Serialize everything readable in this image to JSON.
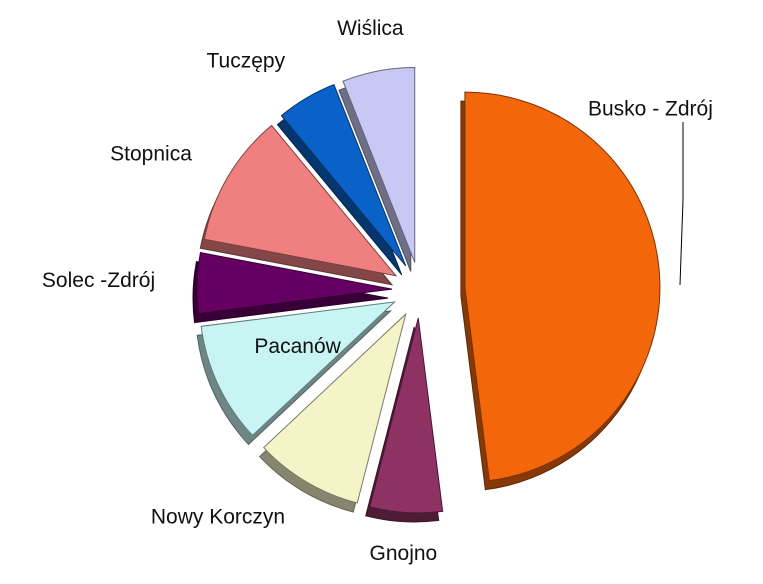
{
  "chart_data": {
    "type": "pie",
    "categories": [
      "Busko -  Zdrój",
      "Gnojno",
      "Nowy Korczyn",
      "Pacanów",
      "Solec -Zdrój",
      "Stopnica",
      "Tuczępy",
      "Wiślica"
    ],
    "values": [
      48,
      6,
      9,
      10,
      5,
      11,
      5,
      6
    ],
    "colors": [
      "#f4660a",
      "#8e3263",
      "#f4f4c8",
      "#c8f4f4",
      "#650062",
      "#f08080",
      "#0a62c8",
      "#c8c8f4"
    ]
  }
}
